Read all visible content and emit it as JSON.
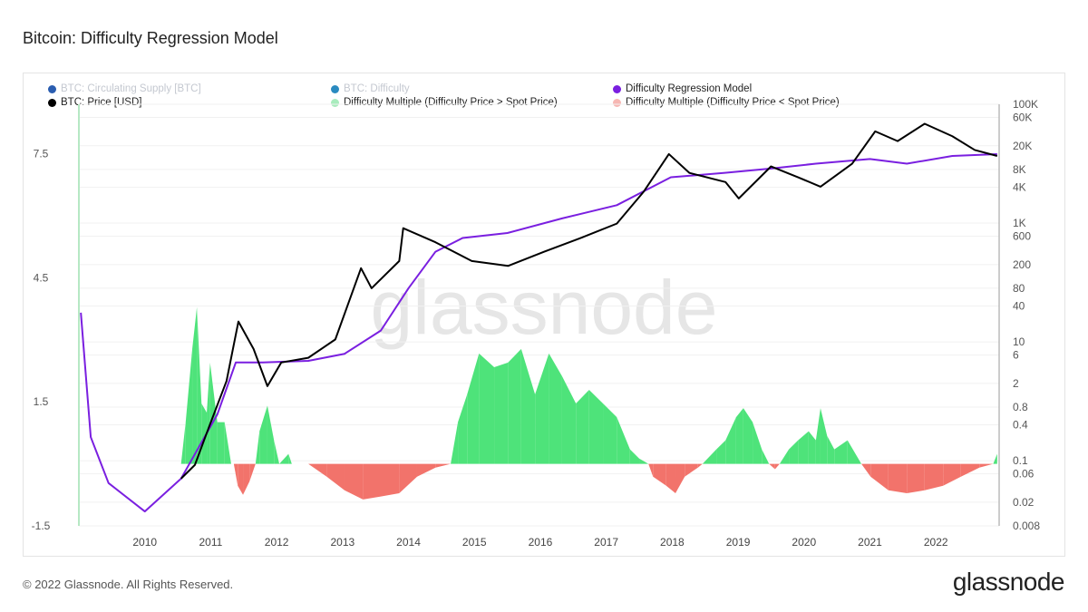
{
  "title": "Bitcoin: Difficulty Regression Model",
  "footer": "© 2022 Glassnode. All Rights Reserved.",
  "logo": "glassnode",
  "watermark": "glassnode",
  "legend": [
    {
      "label": "BTC: Circulating Supply [BTC]",
      "color": "#2a5db0",
      "muted": true
    },
    {
      "label": "BTC: Difficulty",
      "color": "#2a8ac0",
      "muted": true
    },
    {
      "label": "Difficulty Regression Model",
      "color": "#7a1fe0",
      "muted": false
    },
    {
      "label": "BTC: Price [USD]",
      "color": "#000000",
      "muted": false
    },
    {
      "label": "Difficulty Multiple (Difficulty Price > Spot Price)",
      "color": "#a8ecbd",
      "muted": false
    },
    {
      "label": "Difficulty Multiple (Difficulty Price < Spot Price)",
      "color": "#f7b7b3",
      "muted": false
    }
  ],
  "chart_data": {
    "type": "line",
    "x_ticks": [
      "2010",
      "2011",
      "2012",
      "2013",
      "2014",
      "2015",
      "2016",
      "2017",
      "2018",
      "2019",
      "2020",
      "2021",
      "2022"
    ],
    "xlim": [
      2009.0,
      2022.96
    ],
    "left_axis": {
      "ticks": [
        "-1.5",
        "1.5",
        "4.5",
        "7.5"
      ],
      "range": [
        -1.5,
        8.7
      ]
    },
    "right_axis": {
      "scale": "log",
      "ticks": [
        "0.008",
        "0.02",
        "0.06",
        "0.1",
        "0.4",
        "0.8",
        "2",
        "6",
        "10",
        "40",
        "80",
        "200",
        "600",
        "1K",
        "4K",
        "8K",
        "20K",
        "60K",
        "100K"
      ],
      "tick_values": [
        0.008,
        0.02,
        0.06,
        0.1,
        0.4,
        0.8,
        2,
        6,
        10,
        40,
        80,
        200,
        600,
        1000,
        4000,
        8000,
        20000,
        60000,
        100000
      ],
      "range": [
        0.008,
        100000
      ]
    },
    "colors": {
      "price": "#000000",
      "model": "#7a1fe0",
      "above": "#4ee37a",
      "below": "#f2736b"
    },
    "series": [
      {
        "name": "BTC: Price [USD]",
        "axis": "right",
        "x": [
          2010.55,
          2010.76,
          2010.97,
          2011.24,
          2011.42,
          2011.65,
          2011.86,
          2012.07,
          2012.48,
          2012.89,
          2013.28,
          2013.44,
          2013.86,
          2013.92,
          2014.41,
          2014.96,
          2015.51,
          2016.06,
          2016.61,
          2017.16,
          2017.57,
          2017.95,
          2018.26,
          2018.81,
          2019.01,
          2019.5,
          2019.91,
          2020.25,
          2020.73,
          2021.08,
          2021.42,
          2021.83,
          2022.25,
          2022.59,
          2022.93
        ],
        "y": [
          0.05,
          0.085,
          0.36,
          2.2,
          22,
          7.6,
          1.8,
          4.5,
          5.4,
          11,
          174,
          80,
          230,
          820,
          475,
          230,
          190,
          330,
          560,
          980,
          3400,
          14500,
          7000,
          4900,
          2600,
          9000,
          5900,
          4100,
          10000,
          35000,
          24000,
          47000,
          29000,
          17000,
          13500
        ]
      },
      {
        "name": "Difficulty Regression Model",
        "axis": "right",
        "x": [
          2009.03,
          2009.18,
          2009.45,
          2010.0,
          2010.55,
          2011.1,
          2011.38,
          2011.79,
          2012.48,
          2013.03,
          2013.58,
          2014.0,
          2014.41,
          2014.82,
          2015.5,
          2016.33,
          2017.16,
          2017.98,
          2018.8,
          2019.5,
          2020.18,
          2021.0,
          2021.56,
          2022.25,
          2022.93
        ],
        "y": [
          31,
          0.25,
          0.042,
          0.014,
          0.05,
          0.6,
          4.5,
          4.5,
          4.8,
          6.3,
          15.5,
          80,
          330,
          560,
          680,
          1200,
          2000,
          5900,
          7000,
          8300,
          10000,
          12000,
          10000,
          13500,
          14500
        ]
      },
      {
        "name": "Difficulty Multiple",
        "axis": "left",
        "type": "area",
        "x": [
          2010.55,
          2010.62,
          2010.72,
          2010.79,
          2010.86,
          2010.94,
          2010.99,
          2011.1,
          2011.21,
          2011.31,
          2011.35,
          2011.41,
          2011.49,
          2011.59,
          2011.68,
          2011.74,
          2011.86,
          2011.96,
          2012.04,
          2012.18,
          2012.23,
          2012.48,
          2012.76,
          2013.03,
          2013.31,
          2013.58,
          2013.86,
          2014.13,
          2014.41,
          2014.64,
          2014.75,
          2014.89,
          2015.07,
          2015.3,
          2015.51,
          2015.71,
          2015.92,
          2016.13,
          2016.33,
          2016.54,
          2016.74,
          2016.95,
          2017.16,
          2017.36,
          2017.5,
          2017.64,
          2017.71,
          2017.91,
          2018.05,
          2018.19,
          2018.39,
          2018.46,
          2018.67,
          2018.81,
          2018.97,
          2019.08,
          2019.22,
          2019.36,
          2019.47,
          2019.56,
          2019.63,
          2019.77,
          2019.91,
          2020.07,
          2020.18,
          2020.25,
          2020.35,
          2020.46,
          2020.66,
          2020.87,
          2021.01,
          2021.28,
          2021.56,
          2021.83,
          2022.11,
          2022.38,
          2022.66,
          2022.87,
          2022.93
        ],
        "y": [
          0,
          1.01,
          2.78,
          3.79,
          1.46,
          1.24,
          2.45,
          1.01,
          1.01,
          0,
          0,
          -0.53,
          -0.75,
          -0.42,
          0,
          0.79,
          1.41,
          0.57,
          0,
          0.24,
          0,
          0,
          -0.31,
          -0.64,
          -0.86,
          -0.79,
          -0.71,
          -0.31,
          -0.09,
          0,
          1.01,
          1.68,
          2.67,
          2.34,
          2.45,
          2.78,
          1.68,
          2.67,
          2.12,
          1.46,
          1.79,
          1.46,
          1.13,
          0.35,
          0.13,
          0,
          -0.31,
          -0.53,
          -0.71,
          -0.31,
          -0.09,
          0,
          0.35,
          0.57,
          1.13,
          1.35,
          1.01,
          0.35,
          0,
          -0.13,
          0,
          0.35,
          0.57,
          0.79,
          0.57,
          1.35,
          0.68,
          0.35,
          0.57,
          0,
          -0.31,
          -0.64,
          -0.71,
          -0.64,
          -0.53,
          -0.31,
          -0.09,
          0,
          0.24
        ]
      }
    ]
  }
}
